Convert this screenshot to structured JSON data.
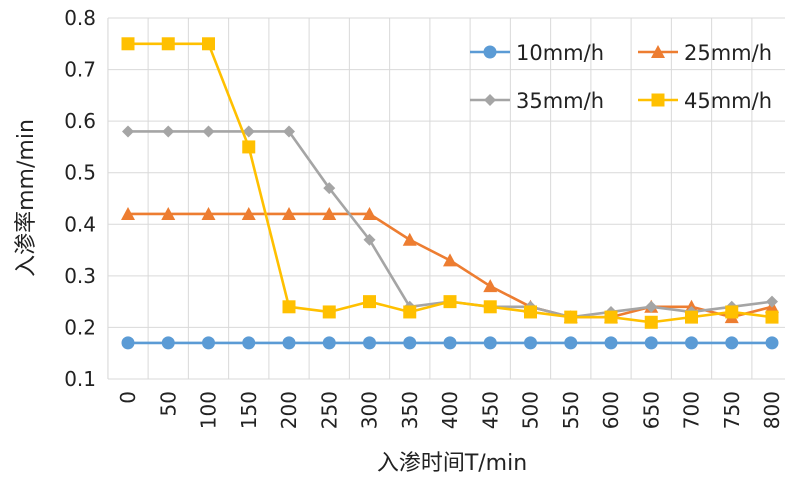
{
  "chart_data": {
    "type": "line",
    "title": "",
    "xlabel": "入渗时间T/min",
    "ylabel": "入渗率mm/min",
    "x": [
      0,
      50,
      100,
      150,
      200,
      250,
      300,
      350,
      400,
      450,
      500,
      550,
      600,
      650,
      700,
      750,
      800
    ],
    "x_tick_labels": [
      "0",
      "50",
      "100",
      "150",
      "200",
      "250",
      "300",
      "350",
      "400",
      "450",
      "500",
      "550",
      "600",
      "650",
      "700",
      "750",
      "800"
    ],
    "ylim": [
      0.1,
      0.8
    ],
    "y_tick_labels": [
      "0.1",
      "0.2",
      "0.3",
      "0.4",
      "0.5",
      "0.6",
      "0.7",
      "0.8"
    ],
    "grid": "vertical and horizontal",
    "legend_position": "top-right",
    "series": [
      {
        "name": "10mm/h",
        "color": "#5B9BD5",
        "marker": "circle",
        "values": [
          0.17,
          0.17,
          0.17,
          0.17,
          0.17,
          0.17,
          0.17,
          0.17,
          0.17,
          0.17,
          0.17,
          0.17,
          0.17,
          0.17,
          0.17,
          0.17,
          0.17
        ]
      },
      {
        "name": "25mm/h",
        "color": "#ED7D31",
        "marker": "triangle",
        "values": [
          0.42,
          0.42,
          0.42,
          0.42,
          0.42,
          0.42,
          0.42,
          0.37,
          0.33,
          0.28,
          0.24,
          0.22,
          0.22,
          0.24,
          0.24,
          0.22,
          0.24
        ]
      },
      {
        "name": "35mm/h",
        "color": "#A5A5A5",
        "marker": "diamond",
        "values": [
          0.58,
          0.58,
          0.58,
          0.58,
          0.58,
          0.47,
          0.37,
          0.24,
          0.25,
          0.24,
          0.24,
          0.22,
          0.23,
          0.24,
          0.23,
          0.24,
          0.25
        ]
      },
      {
        "name": "45mm/h",
        "color": "#FFC000",
        "marker": "square",
        "values": [
          0.75,
          0.75,
          0.75,
          0.55,
          0.24,
          0.23,
          0.25,
          0.23,
          0.25,
          0.24,
          0.23,
          0.22,
          0.22,
          0.21,
          0.22,
          0.23,
          0.22
        ]
      }
    ]
  }
}
